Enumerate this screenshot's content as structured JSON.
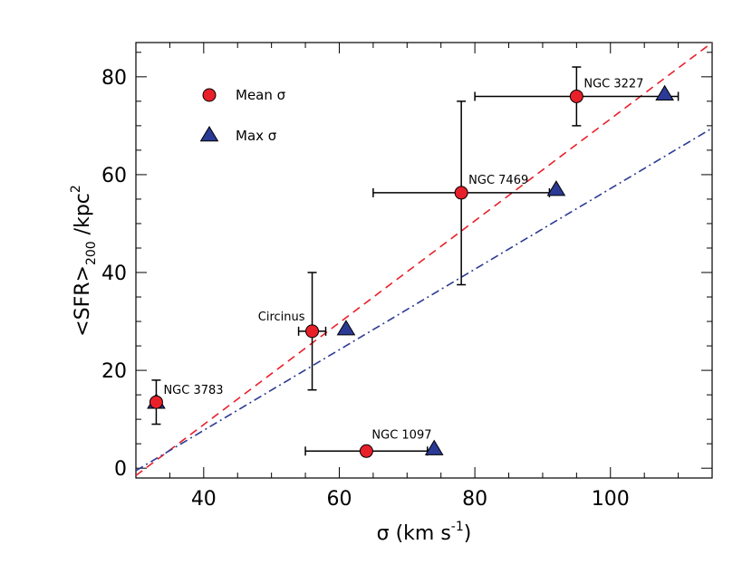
{
  "chart_data": {
    "type": "scatter",
    "xlabel": {
      "main": "σ (km s",
      "sup": "-1",
      "end": ")"
    },
    "ylabel": {
      "pre": "<SFR>",
      "sub": "200",
      "mid": " /kpc",
      "sup": "2"
    },
    "xlim": [
      30,
      115
    ],
    "ylim": [
      -2,
      87
    ],
    "xticks": [
      40,
      60,
      80,
      100
    ],
    "yticks": [
      0,
      20,
      40,
      60,
      80
    ],
    "grid": false,
    "legend_position": "top-left",
    "series": [
      {
        "name": "Mean σ",
        "marker": "circle",
        "color": "#e8202a",
        "points": [
          {
            "label": "NGC 3783",
            "x": 33,
            "y": 13.5,
            "xerr": [
              32.5,
              33.5
            ],
            "yerr": [
              9,
              18
            ]
          },
          {
            "label": "Circinus",
            "x": 56,
            "y": 28,
            "xerr": [
              54,
              58
            ],
            "yerr": [
              16,
              40
            ]
          },
          {
            "label": "NGC 1097",
            "x": 64,
            "y": 3.5,
            "xerr": [
              55,
              73
            ],
            "yerr": null
          },
          {
            "label": "NGC 7469",
            "x": 78,
            "y": 56.3,
            "xerr": [
              65,
              91
            ],
            "yerr": [
              37.5,
              75
            ]
          },
          {
            "label": "NGC 3227",
            "x": 95,
            "y": 76,
            "xerr": [
              80,
              110
            ],
            "yerr": [
              70,
              82
            ]
          }
        ]
      },
      {
        "name": "Max σ",
        "marker": "triangle",
        "color": "#2b3a94",
        "points": [
          {
            "x": 33,
            "y": 13.5
          },
          {
            "x": 61,
            "y": 28.5
          },
          {
            "x": 74,
            "y": 4
          },
          {
            "x": 92,
            "y": 57
          },
          {
            "x": 108,
            "y": 76.5
          }
        ]
      }
    ],
    "fit_lines": [
      {
        "color": "#e8202a",
        "style": "dashed",
        "x": [
          30,
          115
        ],
        "y": [
          -1.5,
          87
        ]
      },
      {
        "color": "#2b3a94",
        "style": "dashdot",
        "x": [
          30,
          115
        ],
        "y": [
          -0.5,
          69.5
        ]
      }
    ]
  }
}
